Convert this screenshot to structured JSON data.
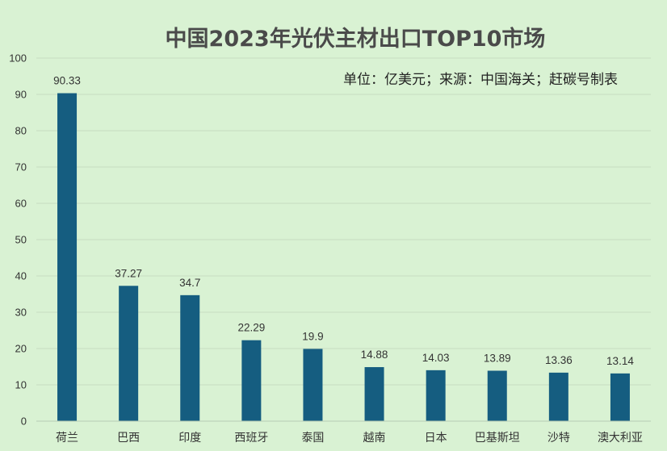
{
  "chart_data": {
    "type": "bar",
    "title": "中国2023年光伏主材出口TOP10市场",
    "note": "单位：亿美元；来源：中国海关；赶碳号制表",
    "categories": [
      "荷兰",
      "巴西",
      "印度",
      "西班牙",
      "泰国",
      "越南",
      "日本",
      "巴基斯坦",
      "沙特",
      "澳大利亚"
    ],
    "values": [
      90.33,
      37.27,
      34.7,
      22.29,
      19.9,
      14.88,
      14.03,
      13.89,
      13.36,
      13.14
    ],
    "value_labels": [
      "90.33",
      "37.27",
      "34.7",
      "22.29",
      "19.9",
      "14.88",
      "14.03",
      "13.89",
      "13.36",
      "13.14"
    ],
    "ylim": [
      0,
      100
    ],
    "yticks": [
      "0",
      "10",
      "20",
      "30",
      "40",
      "50",
      "60",
      "70",
      "80",
      "90",
      "100"
    ],
    "xlabel": "",
    "ylabel": "",
    "grid": true,
    "colors": {
      "background": "#d9f2d3",
      "bar": "#155d80"
    }
  }
}
